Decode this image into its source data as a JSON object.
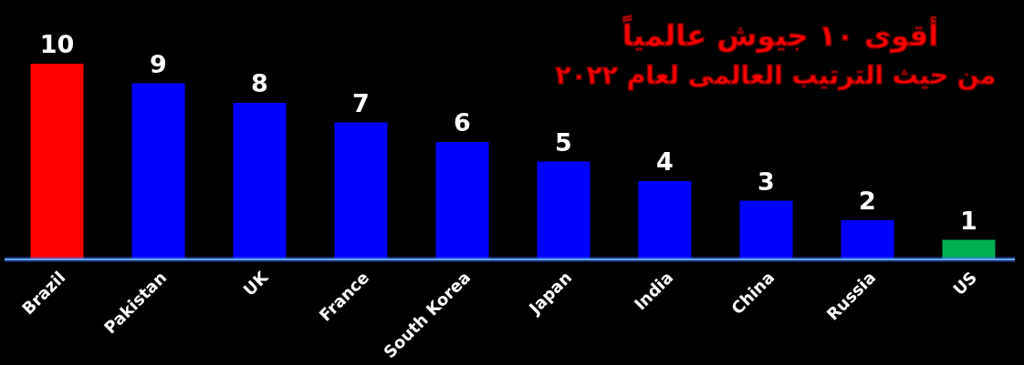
{
  "chart_data": {
    "type": "bar",
    "title": "أقوى ١٠ جيوش عالمياً",
    "subtitle": "من حيث الترتيب العالمى لعام ٢٠٢٢",
    "categories": [
      "Brazil",
      "Pakistan",
      "UK",
      "France",
      "South Korea",
      "Japan",
      "India",
      "China",
      "Russia",
      "US"
    ],
    "values": [
      10,
      9,
      8,
      7,
      6,
      5,
      4,
      3,
      2,
      1
    ],
    "colors": [
      "#ff0000",
      "#0000ff",
      "#0000ff",
      "#0000ff",
      "#0000ff",
      "#0000ff",
      "#0000ff",
      "#0000ff",
      "#0000ff",
      "#00b050"
    ],
    "data_labels": true
  }
}
